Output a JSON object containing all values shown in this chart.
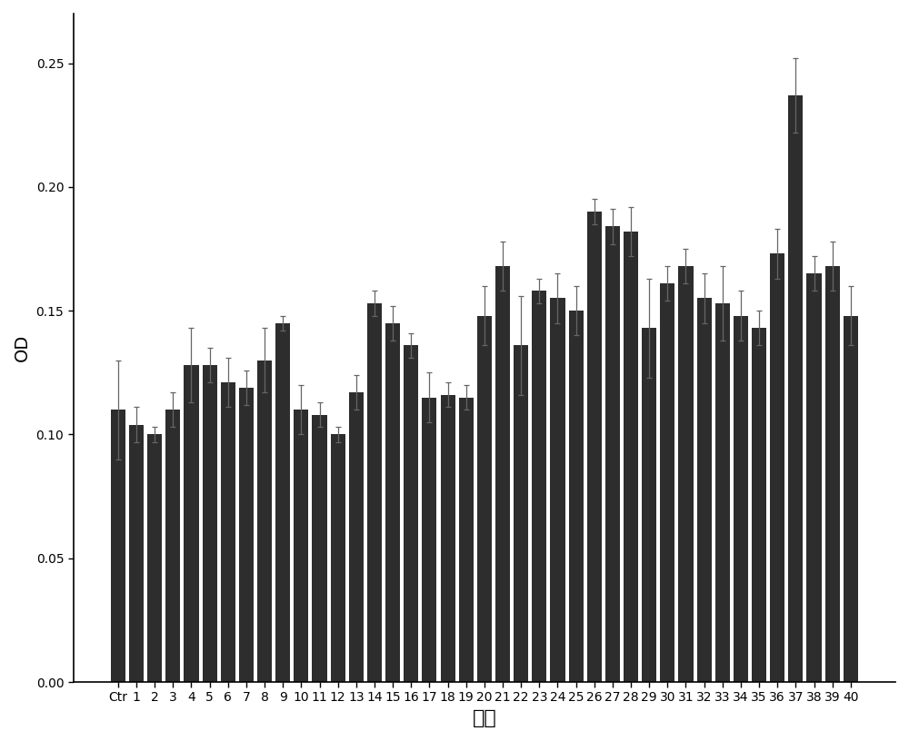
{
  "categories": [
    "Ctr",
    "1",
    "2",
    "3",
    "4",
    "5",
    "6",
    "7",
    "8",
    "9",
    "10",
    "11",
    "12",
    "13",
    "14",
    "15",
    "16",
    "17",
    "18",
    "19",
    "20",
    "21",
    "22",
    "23",
    "24",
    "25",
    "26",
    "27",
    "28",
    "29",
    "30",
    "31",
    "32",
    "33",
    "34",
    "35",
    "36",
    "37",
    "38",
    "39",
    "40"
  ],
  "values": [
    0.11,
    0.104,
    0.1,
    0.11,
    0.128,
    0.128,
    0.121,
    0.119,
    0.13,
    0.145,
    0.11,
    0.108,
    0.1,
    0.117,
    0.153,
    0.145,
    0.136,
    0.115,
    0.116,
    0.115,
    0.148,
    0.168,
    0.136,
    0.158,
    0.155,
    0.15,
    0.19,
    0.184,
    0.182,
    0.143,
    0.161,
    0.168,
    0.155,
    0.153,
    0.148,
    0.143,
    0.173,
    0.237,
    0.165,
    0.168,
    0.148
  ],
  "errors": [
    0.02,
    0.007,
    0.003,
    0.007,
    0.015,
    0.007,
    0.01,
    0.007,
    0.013,
    0.003,
    0.01,
    0.005,
    0.003,
    0.007,
    0.005,
    0.007,
    0.005,
    0.01,
    0.005,
    0.005,
    0.012,
    0.01,
    0.02,
    0.005,
    0.01,
    0.01,
    0.005,
    0.007,
    0.01,
    0.02,
    0.007,
    0.007,
    0.01,
    0.015,
    0.01,
    0.007,
    0.01,
    0.015,
    0.007,
    0.01,
    0.012
  ],
  "bar_color": "#2d2d2d",
  "error_color": "#666666",
  "ylabel": "OD",
  "xlabel": "编号",
  "ylim": [
    0.0,
    0.27
  ],
  "yticks": [
    0.0,
    0.05,
    0.1,
    0.15,
    0.2,
    0.25
  ],
  "background_color": "#ffffff",
  "ylabel_fontsize": 14,
  "xlabel_fontsize": 16,
  "tick_fontsize": 10
}
